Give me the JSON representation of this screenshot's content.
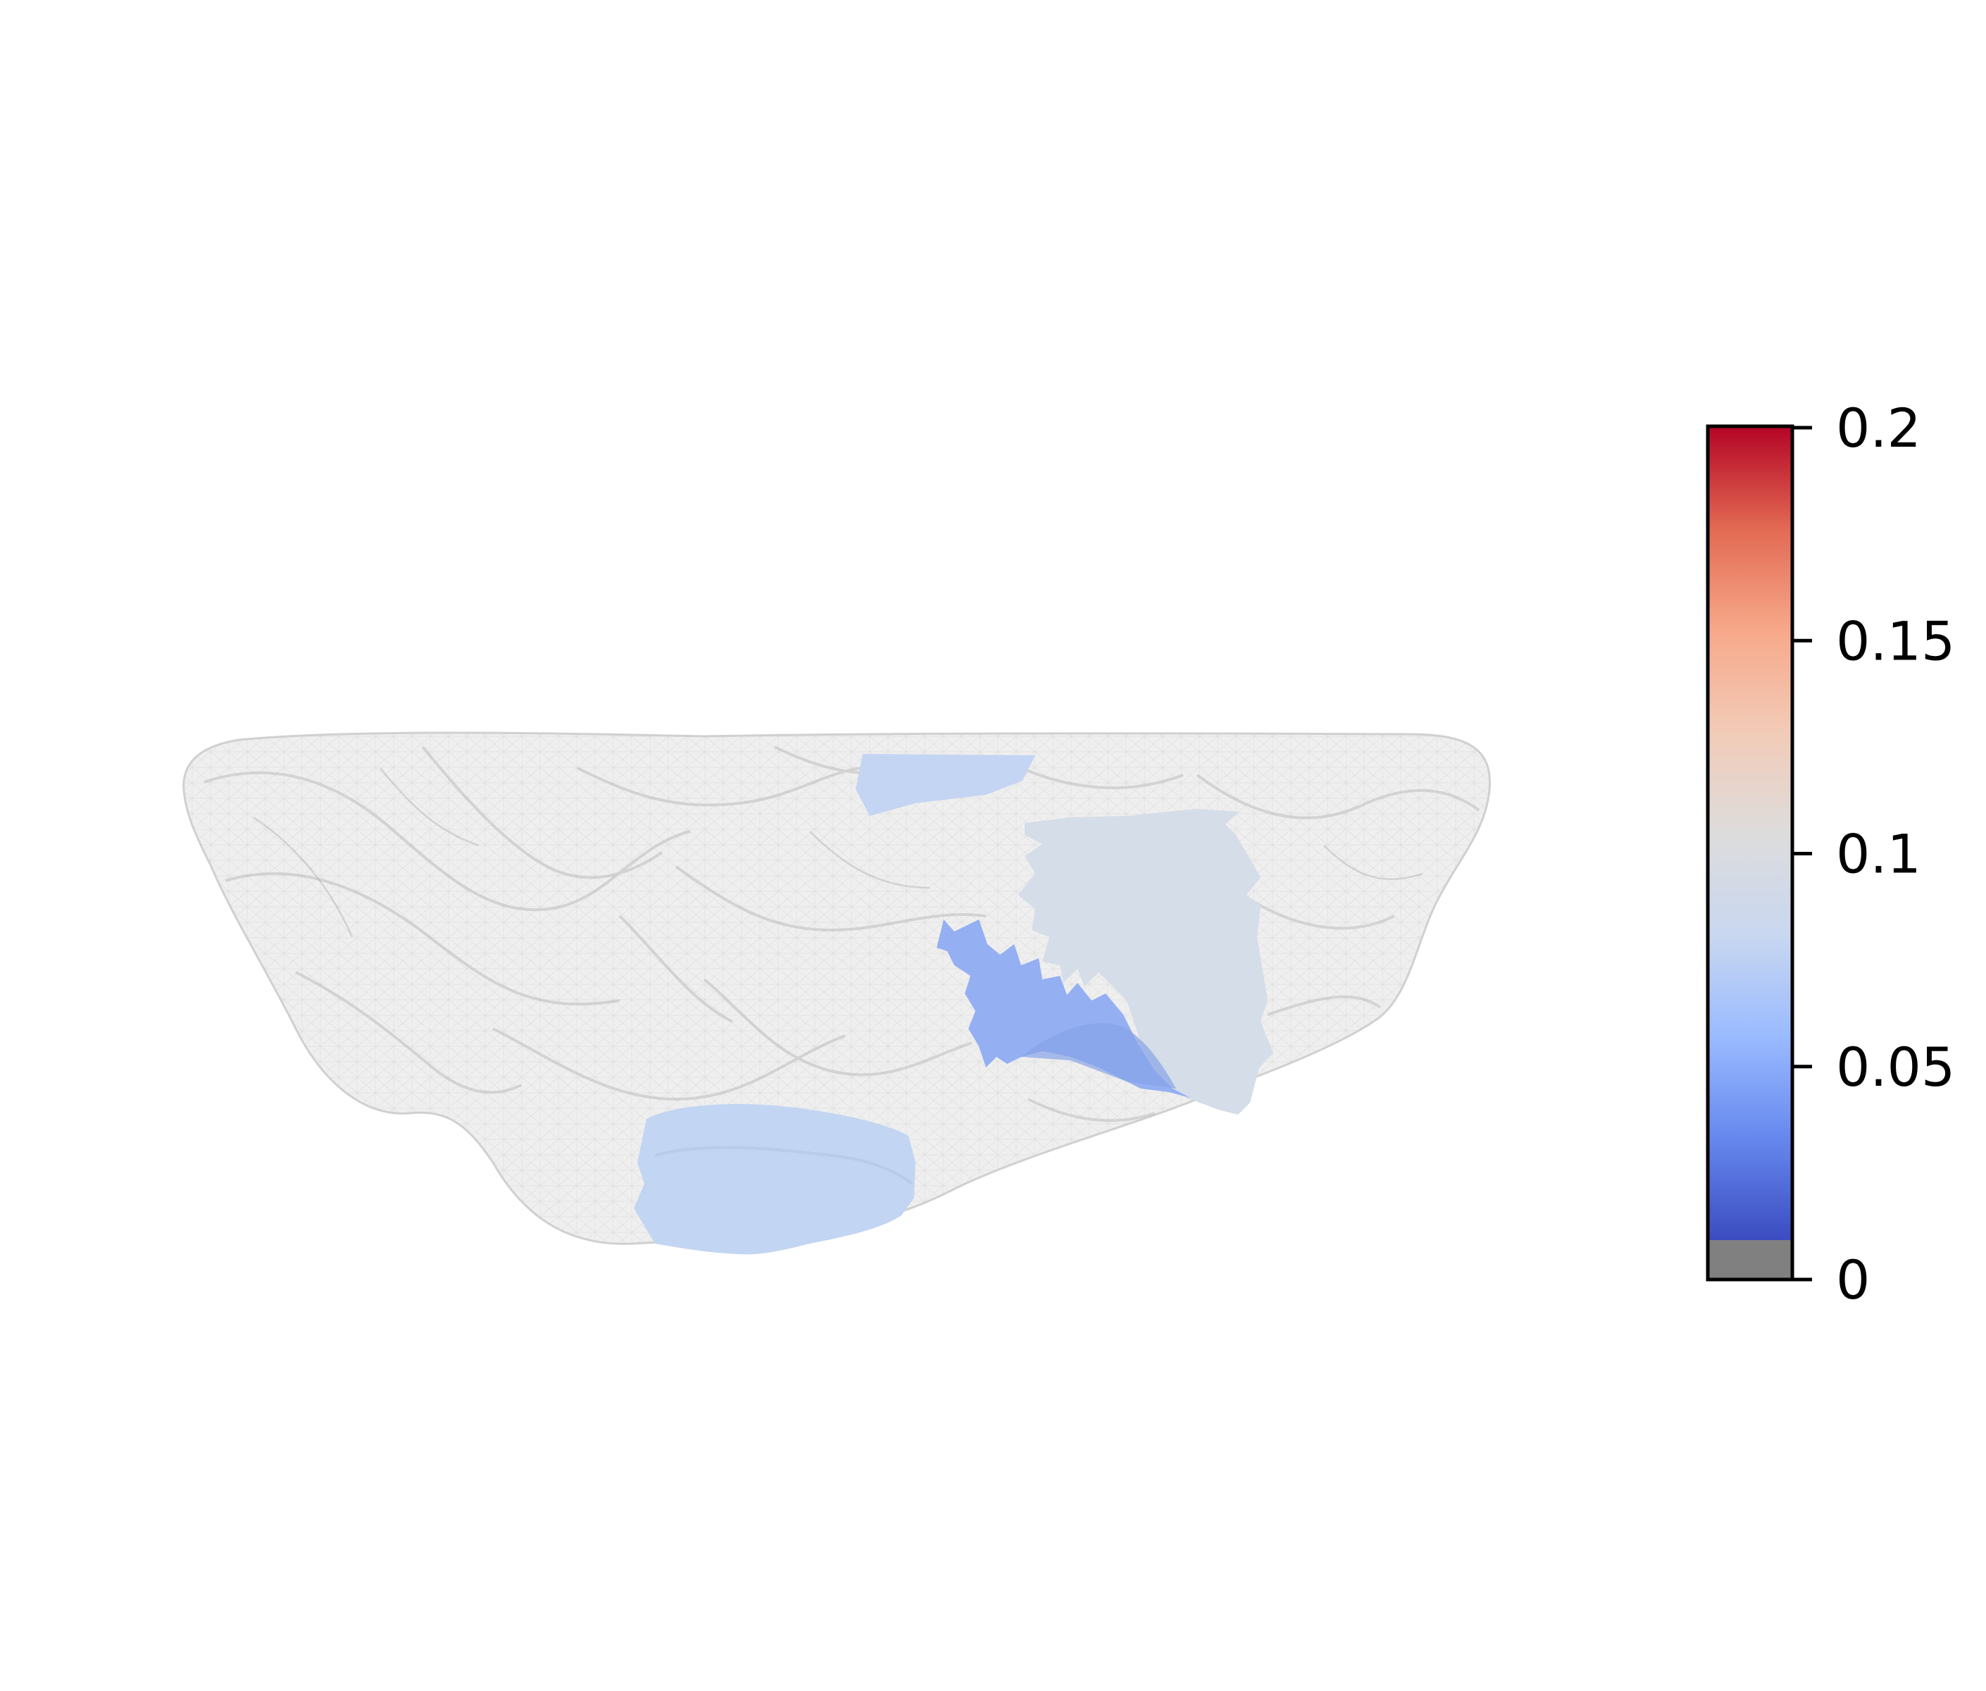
{
  "figure": {
    "kind": "3d-mesh-render",
    "mesh_color": "#c8c8c8",
    "background": "#ffffff"
  },
  "patches": [
    {
      "name": "top-center-patch",
      "color": "#c3d5f2",
      "approx_value": 0.08
    },
    {
      "name": "right-large-patch",
      "color": "#d5dde8",
      "approx_value": 0.095
    },
    {
      "name": "center-dark-patch",
      "color": "#94aff2",
      "approx_value": 0.06
    },
    {
      "name": "bottom-left-patch",
      "color": "#c2d5f2",
      "approx_value": 0.08
    }
  ],
  "colorbar": {
    "colormap": "coolwarm",
    "min": 0,
    "max": 0.2,
    "under_color": "#808080",
    "stops": [
      "#3b4cc0",
      "#6688ee",
      "#9abbff",
      "#c9d7f0",
      "#dddcdc",
      "#f2cbb7",
      "#f7a889",
      "#e26952",
      "#b40426"
    ],
    "ticks": [
      {
        "value": 0,
        "label": "0"
      },
      {
        "value": 0.05,
        "label": "0.05"
      },
      {
        "value": 0.1,
        "label": "0.1"
      },
      {
        "value": 0.15,
        "label": "0.15"
      },
      {
        "value": 0.2,
        "label": "0.2"
      }
    ]
  }
}
